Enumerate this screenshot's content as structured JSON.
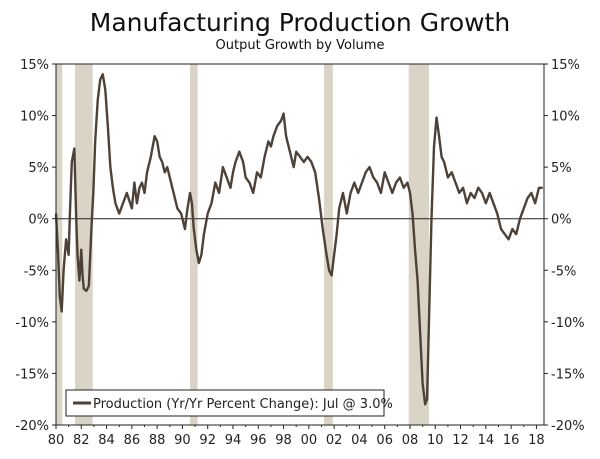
{
  "chart_data": {
    "type": "line",
    "title": "Manufacturing Production Growth",
    "subtitle": "Output Growth by Volume",
    "ylim": [
      -20,
      15
    ],
    "xlim": [
      1980,
      2018.6
    ],
    "y_ticks": [
      15,
      10,
      5,
      0,
      -5,
      -10,
      -15,
      -20
    ],
    "y_tick_labels": [
      "15%",
      "10%",
      "5%",
      "0%",
      "-5%",
      "-10%",
      "-15%",
      "-20%"
    ],
    "x_ticks": [
      1980,
      1982,
      1984,
      1986,
      1988,
      1990,
      1992,
      1994,
      1996,
      1998,
      2000,
      2002,
      2004,
      2006,
      2008,
      2010,
      2012,
      2014,
      2016,
      2018
    ],
    "x_tick_labels": [
      "80",
      "82",
      "84",
      "86",
      "88",
      "90",
      "92",
      "94",
      "96",
      "98",
      "00",
      "02",
      "04",
      "06",
      "08",
      "10",
      "12",
      "14",
      "16",
      "18"
    ],
    "recessions": [
      [
        1980.0,
        1980.5
      ],
      [
        1981.5,
        1982.9
      ],
      [
        1990.6,
        1991.2
      ],
      [
        2001.2,
        2001.9
      ],
      [
        2007.9,
        2009.5
      ]
    ],
    "legend": "Production (Yr/Yr Percent Change): Jul @ 3.0%",
    "colors": {
      "line": "#4e4138",
      "recession": "#d9d4c5",
      "axis": "#222222"
    },
    "series": [
      {
        "name": "Production (Yr/Yr Percent Change)",
        "x": [
          1980.0,
          1980.15,
          1980.3,
          1980.45,
          1980.6,
          1980.8,
          1981.0,
          1981.1,
          1981.25,
          1981.45,
          1981.6,
          1981.7,
          1981.85,
          1982.0,
          1982.1,
          1982.2,
          1982.4,
          1982.6,
          1982.8,
          1982.95,
          1983.1,
          1983.3,
          1983.5,
          1983.7,
          1983.9,
          1984.1,
          1984.3,
          1984.5,
          1984.7,
          1985.0,
          1985.3,
          1985.6,
          1986.0,
          1986.2,
          1986.4,
          1986.6,
          1986.8,
          1987.0,
          1987.2,
          1987.5,
          1987.8,
          1988.0,
          1988.2,
          1988.4,
          1988.6,
          1988.8,
          1989.0,
          1989.3,
          1989.6,
          1989.9,
          1990.2,
          1990.4,
          1990.6,
          1990.75,
          1990.9,
          1991.1,
          1991.3,
          1991.5,
          1991.7,
          1992.0,
          1992.3,
          1992.6,
          1992.9,
          1993.2,
          1993.5,
          1993.8,
          1994.0,
          1994.2,
          1994.5,
          1994.8,
          1995.0,
          1995.3,
          1995.6,
          1995.9,
          1996.2,
          1996.5,
          1996.8,
          1997.0,
          1997.2,
          1997.5,
          1997.8,
          1998.0,
          1998.2,
          1998.5,
          1998.8,
          1999.0,
          1999.3,
          1999.6,
          1999.9,
          2000.2,
          2000.5,
          2000.8,
          2001.1,
          2001.4,
          2001.6,
          2001.8,
          2002.0,
          2002.2,
          2002.4,
          2002.7,
          2003.0,
          2003.3,
          2003.6,
          2003.9,
          2004.2,
          2004.5,
          2004.8,
          2005.1,
          2005.4,
          2005.7,
          2006.0,
          2006.3,
          2006.6,
          2006.9,
          2007.2,
          2007.5,
          2007.8,
          2008.0,
          2008.2,
          2008.4,
          2008.6,
          2008.8,
          2009.0,
          2009.2,
          2009.35,
          2009.5,
          2009.7,
          2009.9,
          2010.1,
          2010.3,
          2010.5,
          2010.7,
          2011.0,
          2011.3,
          2011.6,
          2011.9,
          2012.2,
          2012.5,
          2012.8,
          2013.1,
          2013.4,
          2013.7,
          2014.0,
          2014.3,
          2014.6,
          2014.9,
          2015.2,
          2015.5,
          2015.8,
          2016.1,
          2016.4,
          2016.7,
          2017.0,
          2017.3,
          2017.6,
          2017.9,
          2018.2,
          2018.5
        ],
        "values": [
          0.5,
          -3.0,
          -7.5,
          -9.0,
          -5.0,
          -2.0,
          -3.5,
          0.5,
          5.5,
          6.8,
          0.0,
          -3.5,
          -6.0,
          -3.0,
          -5.5,
          -6.8,
          -7.0,
          -6.5,
          -1.0,
          2.5,
          7.5,
          11.5,
          13.5,
          14.0,
          12.5,
          9.0,
          5.0,
          3.0,
          1.5,
          0.5,
          1.5,
          2.5,
          1.0,
          3.5,
          1.5,
          3.0,
          3.5,
          2.5,
          4.5,
          6.0,
          8.0,
          7.5,
          6.0,
          5.5,
          4.5,
          5.0,
          4.0,
          2.5,
          1.0,
          0.5,
          -1.0,
          1.0,
          2.5,
          1.5,
          -1.0,
          -3.0,
          -4.3,
          -3.5,
          -1.5,
          0.5,
          1.5,
          3.5,
          2.5,
          5.0,
          4.0,
          3.0,
          4.5,
          5.5,
          6.5,
          5.5,
          4.0,
          3.5,
          2.5,
          4.5,
          4.0,
          6.0,
          7.5,
          7.0,
          8.0,
          9.0,
          9.5,
          10.2,
          8.0,
          6.5,
          5.0,
          6.5,
          6.0,
          5.5,
          6.0,
          5.5,
          4.5,
          2.0,
          -1.0,
          -3.5,
          -5.0,
          -5.5,
          -3.5,
          -1.5,
          1.0,
          2.5,
          0.5,
          2.5,
          3.5,
          2.5,
          3.5,
          4.5,
          5.0,
          4.0,
          3.5,
          2.5,
          4.5,
          3.5,
          2.5,
          3.5,
          4.0,
          3.0,
          3.5,
          2.5,
          0.5,
          -3.0,
          -6.0,
          -11.0,
          -16.0,
          -18.0,
          -17.5,
          -10.0,
          0.0,
          7.0,
          9.8,
          8.0,
          6.0,
          5.5,
          4.0,
          4.5,
          3.5,
          2.5,
          3.0,
          1.5,
          2.5,
          2.0,
          3.0,
          2.5,
          1.5,
          2.5,
          1.5,
          0.5,
          -1.0,
          -1.5,
          -2.0,
          -1.0,
          -1.5,
          0.0,
          1.0,
          2.0,
          2.5,
          1.5,
          3.0,
          3.0
        ]
      }
    ]
  }
}
